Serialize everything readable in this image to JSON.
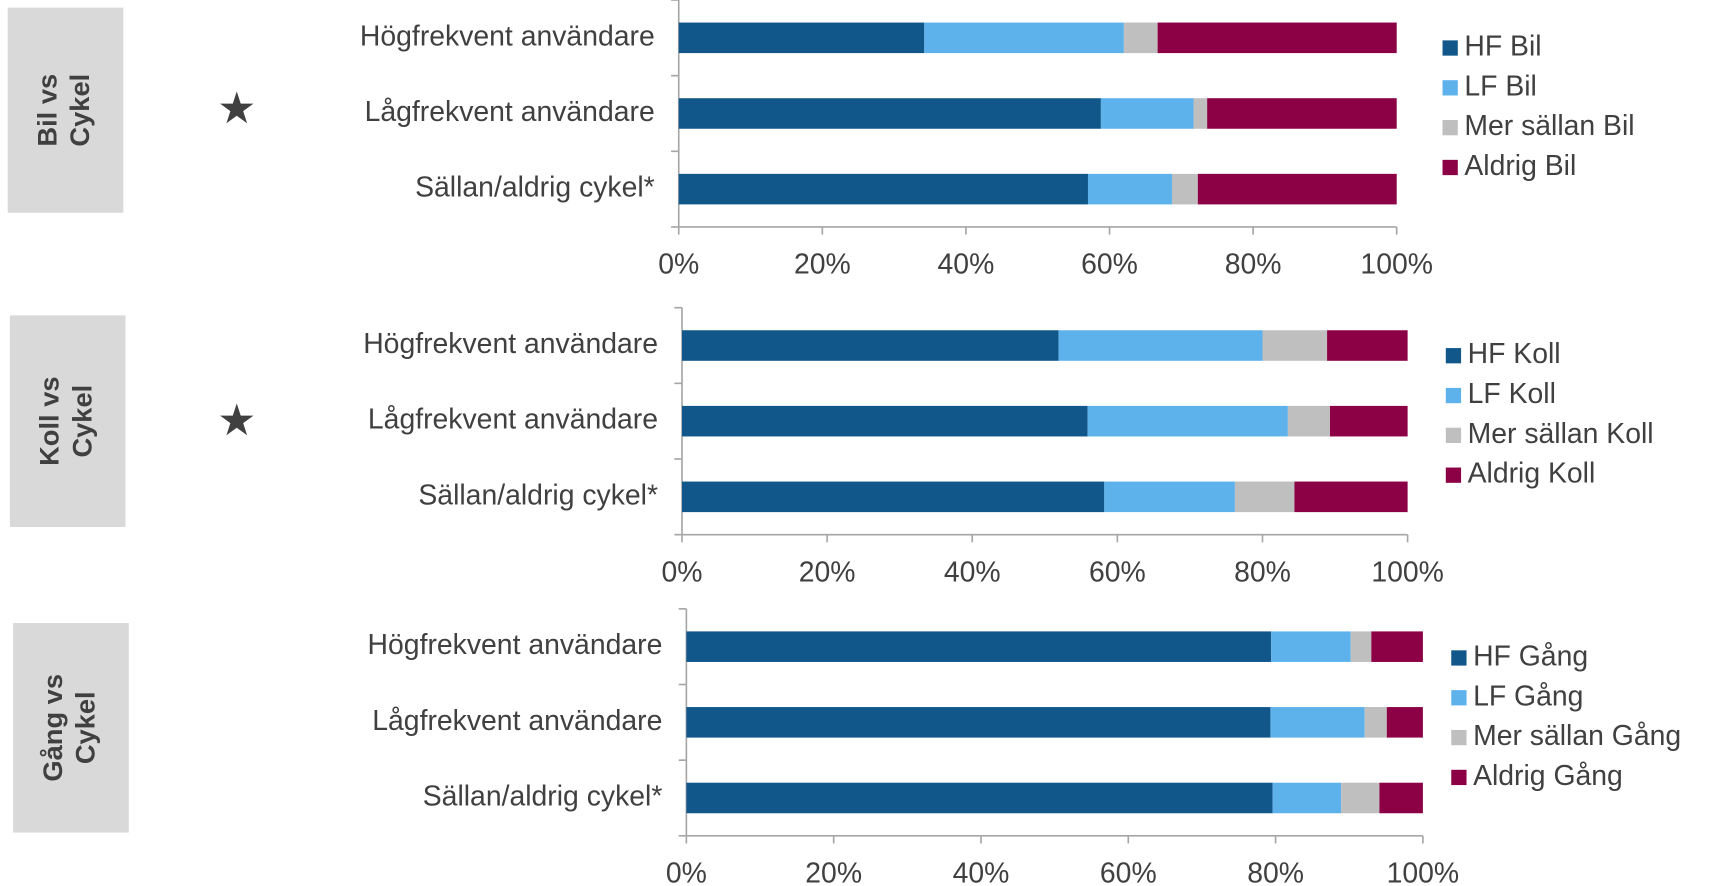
{
  "chart_data": [
    {
      "type": "bar",
      "orientation": "horizontal",
      "stacked": true,
      "panel_label": [
        "Bil vs",
        "Cykel"
      ],
      "categories": [
        "Högfrekvent användare",
        "Lågfrekvent användare",
        "Sällan/aldrig cykel*"
      ],
      "series": [
        {
          "name": "HF Bil",
          "color": "#11578a",
          "values": [
            34.2,
            58.8,
            57.0
          ]
        },
        {
          "name": "LF Bil",
          "color": "#5db2ec",
          "values": [
            27.8,
            12.9,
            11.7
          ]
        },
        {
          "name": "Mer sällan Bil",
          "color": "#bfbfbf",
          "values": [
            4.7,
            1.9,
            3.6
          ]
        },
        {
          "name": "Aldrig Bil",
          "color": "#8c0046",
          "values": [
            33.3,
            26.4,
            27.7
          ]
        }
      ],
      "xlim": [
        0,
        100
      ],
      "xticks": [
        {
          "value": 0,
          "label": "0%"
        },
        {
          "value": 20,
          "label": "20%"
        },
        {
          "value": 40,
          "label": "40%"
        },
        {
          "value": 60,
          "label": "60%"
        },
        {
          "value": 80,
          "label": "80%"
        },
        {
          "value": 100,
          "label": "100%"
        }
      ]
    },
    {
      "type": "bar",
      "orientation": "horizontal",
      "stacked": true,
      "panel_label": [
        "Koll vs",
        "Cykel"
      ],
      "categories": [
        "Högfrekvent användare",
        "Lågfrekvent användare",
        "Sällan/aldrig cykel*"
      ],
      "series": [
        {
          "name": "HF Koll",
          "color": "#11578a",
          "values": [
            51.9,
            55.9,
            58.2
          ]
        },
        {
          "name": "LF Koll",
          "color": "#5db2ec",
          "values": [
            28.1,
            27.6,
            18.0
          ]
        },
        {
          "name": "Mer sällan Koll",
          "color": "#bfbfbf",
          "values": [
            8.9,
            5.8,
            8.2
          ]
        },
        {
          "name": "Aldrig Koll",
          "color": "#8c0046",
          "values": [
            11.1,
            10.7,
            15.6
          ]
        }
      ],
      "xlim": [
        0,
        100
      ],
      "xticks": [
        {
          "value": 0,
          "label": "0%"
        },
        {
          "value": 20,
          "label": "20%"
        },
        {
          "value": 40,
          "label": "40%"
        },
        {
          "value": 60,
          "label": "60%"
        },
        {
          "value": 80,
          "label": "80%"
        },
        {
          "value": 100,
          "label": "100%"
        }
      ]
    },
    {
      "type": "bar",
      "orientation": "horizontal",
      "stacked": true,
      "panel_label": [
        "Gång vs",
        "Cykel"
      ],
      "categories": [
        "Högfrekvent användare",
        "Lågfrekvent användare",
        "Sällan/aldrig cykel*"
      ],
      "series": [
        {
          "name": "HF Gång",
          "color": "#11578a",
          "values": [
            79.4,
            79.3,
            79.6
          ]
        },
        {
          "name": "LF Gång",
          "color": "#5db2ec",
          "values": [
            10.8,
            12.8,
            9.3
          ]
        },
        {
          "name": "Mer sällan Gång",
          "color": "#bfbfbf",
          "values": [
            2.8,
            3.0,
            5.2
          ]
        },
        {
          "name": "Aldrig Gång",
          "color": "#8c0046",
          "values": [
            7.0,
            4.9,
            5.9
          ]
        }
      ],
      "xlim": [
        0,
        100
      ],
      "xticks": [
        {
          "value": 0,
          "label": "0%"
        },
        {
          "value": 20,
          "label": "20%"
        },
        {
          "value": 40,
          "label": "40%"
        },
        {
          "value": 60,
          "label": "60%"
        },
        {
          "value": 80,
          "label": "80%"
        },
        {
          "value": 100,
          "label": "100%"
        }
      ]
    }
  ]
}
